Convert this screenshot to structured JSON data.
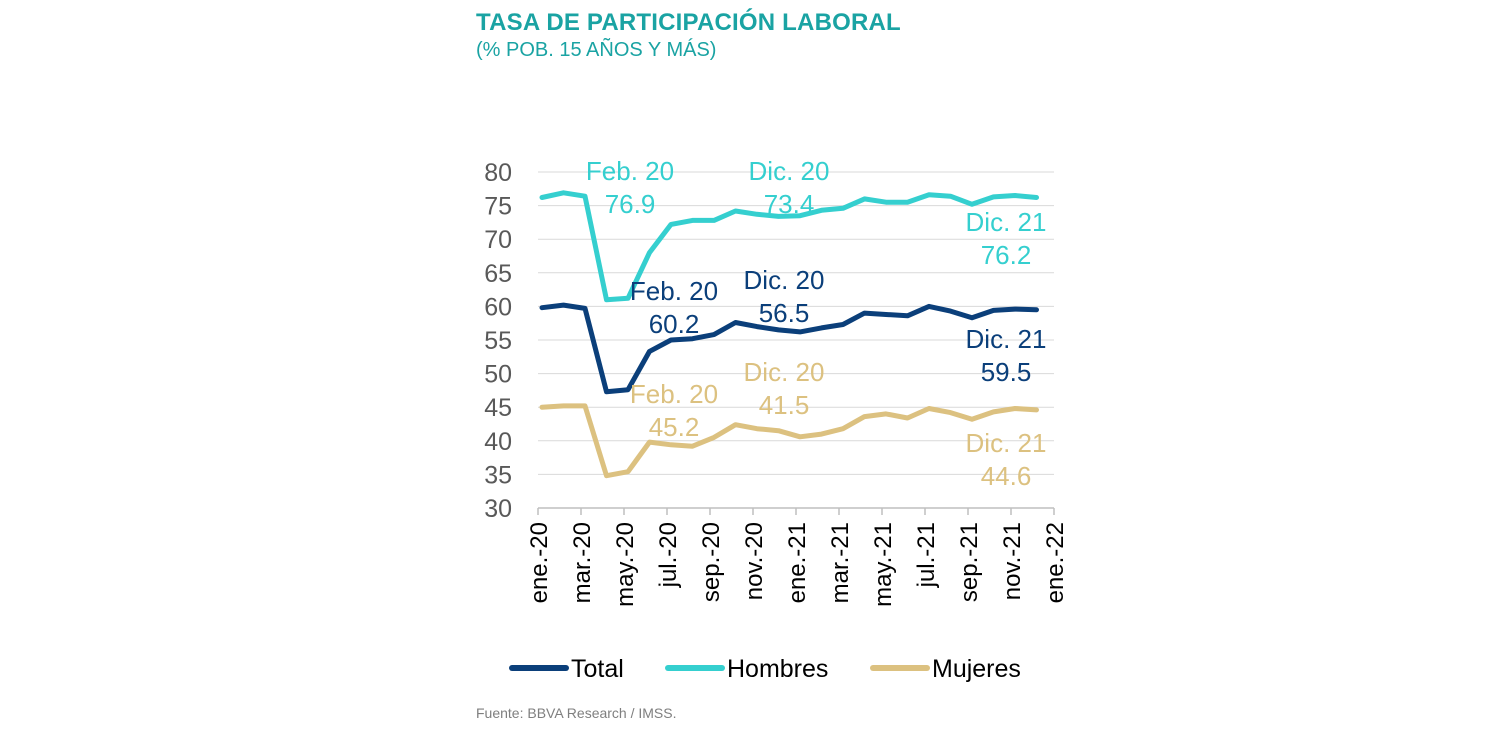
{
  "title": "TASA DE PARTICIPACIÓN LABORAL",
  "subtitle": "(% POB. 15 AÑOS Y MÁS)",
  "source": "Fuente: BBVA Research / IMSS.",
  "colors": {
    "title": "#1aa3a3",
    "total": "#0b3f7a",
    "hombres": "#35cfcf",
    "mujeres": "#dcc180",
    "axis": "#595959",
    "grid": "#d9d9d9"
  },
  "chart_data": {
    "type": "line",
    "x": [
      "ene.-20",
      "feb.-20",
      "mar.-20",
      "abr.-20",
      "may.-20",
      "jun.-20",
      "jul.-20",
      "ago.-20",
      "sep.-20",
      "oct.-20",
      "nov.-20",
      "dic.-20",
      "ene.-21",
      "feb.-21",
      "mar.-21",
      "abr.-21",
      "may.-21",
      "jun.-21",
      "jul.-21",
      "ago.-21",
      "sep.-21",
      "oct.-21",
      "nov.-21",
      "dic.-21"
    ],
    "tick_labels": [
      "ene.-20",
      "mar.-20",
      "may.-20",
      "jul.-20",
      "sep.-20",
      "nov.-20",
      "ene.-21",
      "mar.-21",
      "may.-21",
      "jul.-21",
      "sep.-21",
      "nov.-21",
      "ene.-22"
    ],
    "ylim": [
      30,
      80
    ],
    "yticks": [
      30,
      35,
      40,
      45,
      50,
      55,
      60,
      65,
      70,
      75,
      80
    ],
    "grid": "horizontal",
    "legend_position": "bottom",
    "series": [
      {
        "name": "Total",
        "color_key": "total",
        "values": [
          59.8,
          60.2,
          59.7,
          47.3,
          47.6,
          53.3,
          55.0,
          55.2,
          55.8,
          57.6,
          57.0,
          56.5,
          56.2,
          56.8,
          57.3,
          59.0,
          58.8,
          58.6,
          60.0,
          59.3,
          58.3,
          59.4,
          59.6,
          59.5
        ]
      },
      {
        "name": "Hombres",
        "color_key": "hombres",
        "values": [
          76.2,
          76.9,
          76.4,
          61.0,
          61.2,
          68.0,
          72.2,
          72.8,
          72.8,
          74.2,
          73.7,
          73.4,
          73.5,
          74.3,
          74.6,
          76.0,
          75.5,
          75.5,
          76.6,
          76.4,
          75.2,
          76.3,
          76.5,
          76.2
        ]
      },
      {
        "name": "Mujeres",
        "color_key": "mujeres",
        "values": [
          45.0,
          45.2,
          45.2,
          34.8,
          35.4,
          39.8,
          39.4,
          39.2,
          40.5,
          42.4,
          41.8,
          41.5,
          40.6,
          41.0,
          41.8,
          43.6,
          44.0,
          43.4,
          44.8,
          44.2,
          43.2,
          44.3,
          44.8,
          44.6
        ]
      }
    ],
    "annotations": [
      {
        "series": "Hombres",
        "lines": [
          "Feb. 20",
          "76.9"
        ]
      },
      {
        "series": "Hombres",
        "lines": [
          "Dic. 20",
          "73.4"
        ]
      },
      {
        "series": "Hombres",
        "lines": [
          "Dic. 21",
          "76.2"
        ]
      },
      {
        "series": "Total",
        "lines": [
          "Feb. 20",
          "60.2"
        ]
      },
      {
        "series": "Total",
        "lines": [
          "Dic. 20",
          "56.5"
        ]
      },
      {
        "series": "Total",
        "lines": [
          "Dic. 21",
          "59.5"
        ]
      },
      {
        "series": "Mujeres",
        "lines": [
          "Feb. 20",
          "45.2"
        ]
      },
      {
        "series": "Mujeres",
        "lines": [
          "Dic. 20",
          "41.5"
        ]
      },
      {
        "series": "Mujeres",
        "lines": [
          "Dic. 21",
          "44.6"
        ]
      }
    ]
  }
}
